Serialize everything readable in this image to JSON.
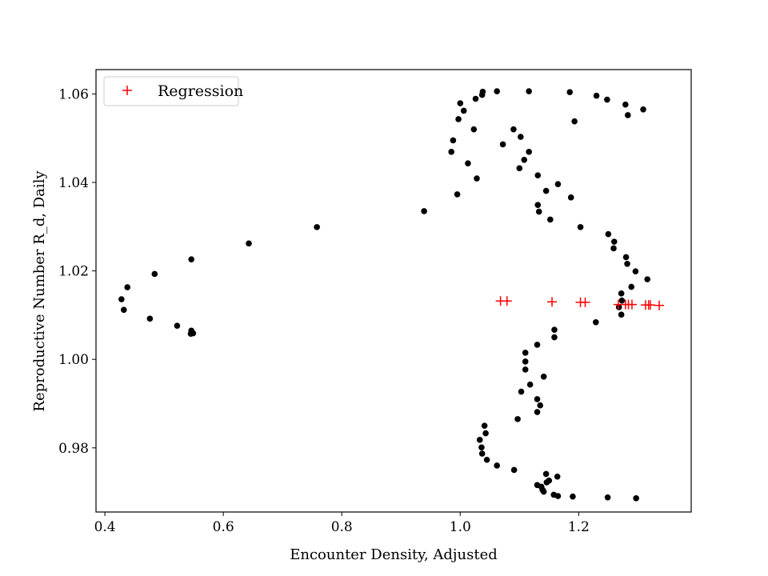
{
  "chart_data": {
    "type": "scatter",
    "title": "",
    "xlabel": "Encounter Density, Adjusted",
    "ylabel": "Reproductive Number R_d, Daily",
    "xlim": [
      0.385,
      1.39
    ],
    "ylim": [
      0.9655,
      1.0655
    ],
    "xticks": [
      0.4,
      0.6,
      0.8,
      1.0,
      1.2
    ],
    "xtick_labels": [
      "0.4",
      "0.6",
      "0.8",
      "1.0",
      "1.2"
    ],
    "yticks": [
      0.98,
      1.0,
      1.02,
      1.04,
      1.06
    ],
    "ytick_labels": [
      "0.98",
      "1.00",
      "1.02",
      "1.04",
      "1.06"
    ],
    "grid": false,
    "legend": {
      "position": "top-left",
      "entries": [
        "Regression"
      ]
    },
    "series": [
      {
        "marker": "dot",
        "color": "#000000",
        "points": [
          [
            0.428,
            1.0136
          ],
          [
            0.438,
            1.0163
          ],
          [
            0.432,
            1.0112
          ],
          [
            0.484,
            1.0193
          ],
          [
            0.476,
            1.0092
          ],
          [
            0.522,
            1.0076
          ],
          [
            0.546,
            1.0226
          ],
          [
            0.546,
            1.0065
          ],
          [
            0.549,
            1.0059
          ],
          [
            0.545,
            1.0058
          ],
          [
            0.643,
            1.0262
          ],
          [
            0.758,
            1.0299
          ],
          [
            0.939,
            1.0335
          ],
          [
            0.995,
            1.0373
          ],
          [
            0.985,
            1.0469
          ],
          [
            0.988,
            1.0495
          ],
          [
            0.997,
            1.0543
          ],
          [
            1.0,
            1.0579
          ],
          [
            1.006,
            1.0562
          ],
          [
            1.013,
            1.0443
          ],
          [
            1.023,
            1.052
          ],
          [
            1.026,
            1.0589
          ],
          [
            1.028,
            1.0409
          ],
          [
            1.037,
            1.0598
          ],
          [
            1.038,
            1.0605
          ],
          [
            1.062,
            1.0606
          ],
          [
            1.072,
            1.0486
          ],
          [
            1.09,
            1.052
          ],
          [
            1.1,
            1.0432
          ],
          [
            1.102,
            1.0503
          ],
          [
            1.108,
            1.0451
          ],
          [
            1.116,
            1.0606
          ],
          [
            1.116,
            1.0469
          ],
          [
            1.131,
            1.0416
          ],
          [
            1.131,
            1.0349
          ],
          [
            1.133,
            1.0334
          ],
          [
            1.145,
            1.0381
          ],
          [
            1.152,
            1.0316
          ],
          [
            1.165,
            1.0396
          ],
          [
            1.185,
            1.0604
          ],
          [
            1.187,
            1.0366
          ],
          [
            1.193,
            1.0538
          ],
          [
            1.203,
            1.0299
          ],
          [
            1.23,
            1.0596
          ],
          [
            1.248,
            1.0587
          ],
          [
            1.25,
            1.0283
          ],
          [
            1.259,
            1.0251
          ],
          [
            1.26,
            1.0266
          ],
          [
            1.279,
            1.0576
          ],
          [
            1.283,
            1.0552
          ],
          [
            1.28,
            1.0231
          ],
          [
            1.282,
            1.0216
          ],
          [
            1.289,
            1.0164
          ],
          [
            1.296,
            1.0199
          ],
          [
            1.309,
            1.0565
          ],
          [
            1.316,
            1.0181
          ],
          [
            1.272,
            1.0149
          ],
          [
            1.273,
            1.0133
          ],
          [
            1.268,
            1.0118
          ],
          [
            1.272,
            1.0101
          ],
          [
            1.229,
            1.0084
          ],
          [
            1.159,
            1.0067
          ],
          [
            1.159,
            1.005
          ],
          [
            1.13,
            1.0033
          ],
          [
            1.11,
            1.0015
          ],
          [
            1.11,
            0.9995
          ],
          [
            1.11,
            0.9977
          ],
          [
            1.141,
            0.9961
          ],
          [
            1.118,
            0.9943
          ],
          [
            1.103,
            0.9927
          ],
          [
            1.13,
            0.991
          ],
          [
            1.135,
            0.9896
          ],
          [
            1.13,
            0.9881
          ],
          [
            1.097,
            0.9865
          ],
          [
            1.041,
            0.985
          ],
          [
            1.043,
            0.9833
          ],
          [
            1.033,
            0.9818
          ],
          [
            1.036,
            0.9801
          ],
          [
            1.037,
            0.9787
          ],
          [
            1.045,
            0.9773
          ],
          [
            1.062,
            0.976
          ],
          [
            1.091,
            0.975
          ],
          [
            1.145,
            0.9741
          ],
          [
            1.164,
            0.9735
          ],
          [
            1.15,
            0.9726
          ],
          [
            1.146,
            0.9722
          ],
          [
            1.13,
            0.9716
          ],
          [
            1.137,
            0.9712
          ],
          [
            1.139,
            0.9705
          ],
          [
            1.141,
            0.9701
          ],
          [
            1.158,
            0.9694
          ],
          [
            1.165,
            0.9691
          ],
          [
            1.19,
            0.969
          ],
          [
            1.249,
            0.9688
          ],
          [
            1.297,
            0.9686
          ]
        ]
      },
      {
        "name": "Regression",
        "marker": "plus",
        "color": "#ff0000",
        "points": [
          [
            1.068,
            1.0132
          ],
          [
            1.079,
            1.0132
          ],
          [
            1.155,
            1.013
          ],
          [
            1.203,
            1.0129
          ],
          [
            1.211,
            1.0129
          ],
          [
            1.267,
            1.0124
          ],
          [
            1.279,
            1.0124
          ],
          [
            1.284,
            1.0124
          ],
          [
            1.29,
            1.0124
          ],
          [
            1.313,
            1.0123
          ],
          [
            1.318,
            1.0123
          ],
          [
            1.321,
            1.0123
          ],
          [
            1.336,
            1.0122
          ]
        ]
      }
    ]
  }
}
